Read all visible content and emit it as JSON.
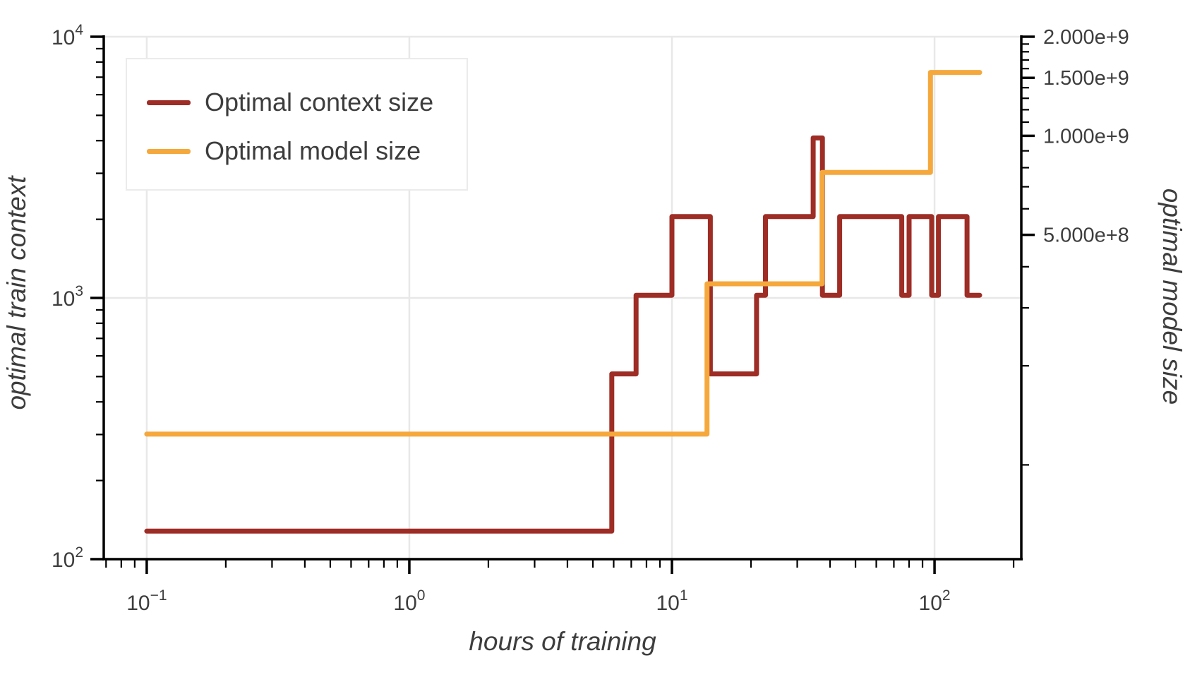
{
  "figure": {
    "background": "#ffffff",
    "text_color": "#3d3d3d",
    "axis_color": "#000000",
    "grid_color": "#e8e8e8"
  },
  "legend": {
    "position": "top-left",
    "entries": [
      {
        "label": "Optimal context size",
        "color": "#9e2d26"
      },
      {
        "label": "Optimal model size",
        "color": "#f5a83c"
      }
    ]
  },
  "axes": {
    "x": {
      "title": "hours of training",
      "scale": "log",
      "major": [
        {
          "v": 0.1,
          "base": "10",
          "exp": "−1"
        },
        {
          "v": 1,
          "base": "10",
          "exp": "0"
        },
        {
          "v": 10,
          "base": "10",
          "exp": "1"
        },
        {
          "v": 100,
          "base": "10",
          "exp": "2"
        }
      ],
      "minor": [
        0.07,
        0.08,
        0.09,
        0.2,
        0.3,
        0.4,
        0.5,
        0.6,
        0.7,
        0.8,
        0.9,
        2,
        3,
        4,
        5,
        6,
        7,
        8,
        9,
        20,
        30,
        40,
        50,
        60,
        70,
        80,
        90,
        200
      ],
      "grid": [
        0.1,
        1,
        10,
        100
      ]
    },
    "y_left": {
      "title": "optimal train context",
      "scale": "log",
      "major": [
        {
          "v": 100,
          "base": "10",
          "exp": "2"
        },
        {
          "v": 1000,
          "base": "10",
          "exp": "3"
        },
        {
          "v": 10000,
          "base": "10",
          "exp": "4"
        }
      ],
      "minor": [
        200,
        300,
        400,
        500,
        600,
        700,
        800,
        900,
        2000,
        3000,
        4000,
        5000,
        6000,
        7000,
        8000,
        9000
      ],
      "grid": [
        1000,
        10000
      ]
    },
    "y_right": {
      "title": "optimal model size",
      "scale": "log",
      "major": [
        {
          "v": 500000000,
          "label": "5.000e+8"
        },
        {
          "v": 1000000000,
          "label": "1.000e+9"
        },
        {
          "v": 1500000000,
          "label": "1.500e+9"
        },
        {
          "v": 2000000000,
          "label": "2.000e+9"
        }
      ],
      "minor": [
        100000000,
        200000000,
        300000000,
        400000000,
        600000000,
        700000000,
        800000000,
        900000000,
        1100000000,
        1200000000,
        1300000000,
        1400000000,
        1600000000,
        1700000000,
        1800000000,
        1900000000
      ]
    }
  },
  "chart_data": {
    "type": "line",
    "step_mode": "post",
    "title": "",
    "xlabel": "hours of training",
    "ylabel_left": "optimal train context",
    "ylabel_right": "optimal model size",
    "x_scale": "log",
    "x_range": [
      0.0686,
      214
    ],
    "y_left_range": [
      100,
      10000
    ],
    "y_right_range": [
      51700000,
      2000000000
    ],
    "x_end": 148.5,
    "grid": true,
    "legend_position": "top-left",
    "series": [
      {
        "name": "Optimal context size",
        "axis": "left",
        "color": "#9e2d26",
        "x": [
          0.1,
          5.9,
          7.3,
          10,
          14,
          21,
          22.7,
          34.5,
          37.4,
          43.5,
          75,
          80,
          97.5,
          103.5,
          133
        ],
        "y": [
          128,
          512,
          1024,
          2048,
          512,
          1024,
          2048,
          4096,
          1024,
          2048,
          1024,
          2048,
          1024,
          2048,
          1024
        ]
      },
      {
        "name": "Optimal model size",
        "axis": "right",
        "color": "#f5a83c",
        "x": [
          0.1,
          13.6,
          37.3,
          96.5
        ],
        "y": [
          124000000,
          355000000,
          774000000,
          1558000000
        ]
      }
    ]
  }
}
